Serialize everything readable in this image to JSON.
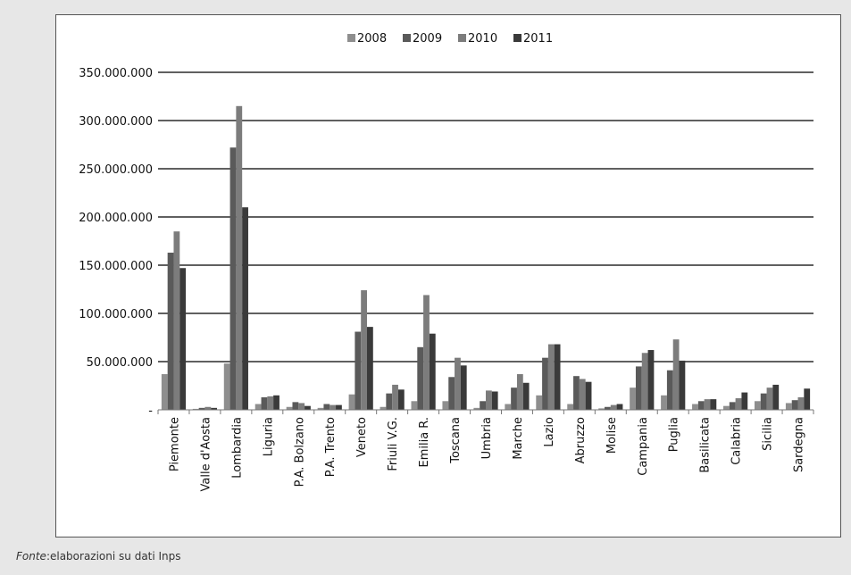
{
  "source_note": {
    "label": "Fonte",
    "text": ":elaborazioni su dati Inps"
  },
  "colors": {
    "2008": "#8e8e8e",
    "2009": "#5a5a5a",
    "2010": "#7c7c7c",
    "2011": "#3a3a3a",
    "gridline": "#000000",
    "frame_background": "#ffffff",
    "page_background": "#e7e7e7"
  },
  "chart_data": {
    "type": "bar",
    "title": "",
    "xlabel": "",
    "ylabel": "",
    "ylim": [
      0,
      350000000
    ],
    "yticks": [
      0,
      50000000,
      100000000,
      150000000,
      200000000,
      250000000,
      300000000,
      350000000
    ],
    "ytick_labels": [
      "-",
      "50.000.000",
      "100.000.000",
      "150.000.000",
      "200.000.000",
      "250.000.000",
      "300.000.000",
      "350.000.000"
    ],
    "grid": true,
    "legend_position": "top",
    "categories": [
      "Piemonte",
      "Valle d'Aosta",
      "Lombardia",
      "Liguria",
      "P.A. Bolzano",
      "P.A. Trento",
      "Veneto",
      "Friuli V.G.",
      "Emilia R.",
      "Toscana",
      "Umbria",
      "Marche",
      "Lazio",
      "Abruzzo",
      "Molise",
      "Campania",
      "Puglia",
      "Basilicata",
      "Calabria",
      "Sicilia",
      "Sardegna"
    ],
    "series": [
      {
        "name": "2008",
        "values": [
          37000000,
          1000000,
          48000000,
          6000000,
          3000000,
          2000000,
          16000000,
          3000000,
          9000000,
          9000000,
          2000000,
          6000000,
          15000000,
          6000000,
          1500000,
          23000000,
          15000000,
          6000000,
          4000000,
          9000000,
          7000000
        ]
      },
      {
        "name": "2009",
        "values": [
          163000000,
          2000000,
          272000000,
          13000000,
          8000000,
          6000000,
          81000000,
          17000000,
          65000000,
          34000000,
          9000000,
          23000000,
          54000000,
          35000000,
          3000000,
          45000000,
          41000000,
          9000000,
          8000000,
          17000000,
          10000000
        ]
      },
      {
        "name": "2010",
        "values": [
          185000000,
          3000000,
          315000000,
          14000000,
          7000000,
          5000000,
          124000000,
          26000000,
          119000000,
          54000000,
          20000000,
          37000000,
          68000000,
          32000000,
          5000000,
          59000000,
          73000000,
          11000000,
          12000000,
          23000000,
          13000000
        ]
      },
      {
        "name": "2011",
        "values": [
          147000000,
          2000000,
          210000000,
          15000000,
          4000000,
          5000000,
          86000000,
          21000000,
          79000000,
          46000000,
          19000000,
          28000000,
          68000000,
          29000000,
          6000000,
          62000000,
          51000000,
          11000000,
          18000000,
          26000000,
          22000000
        ]
      }
    ]
  }
}
